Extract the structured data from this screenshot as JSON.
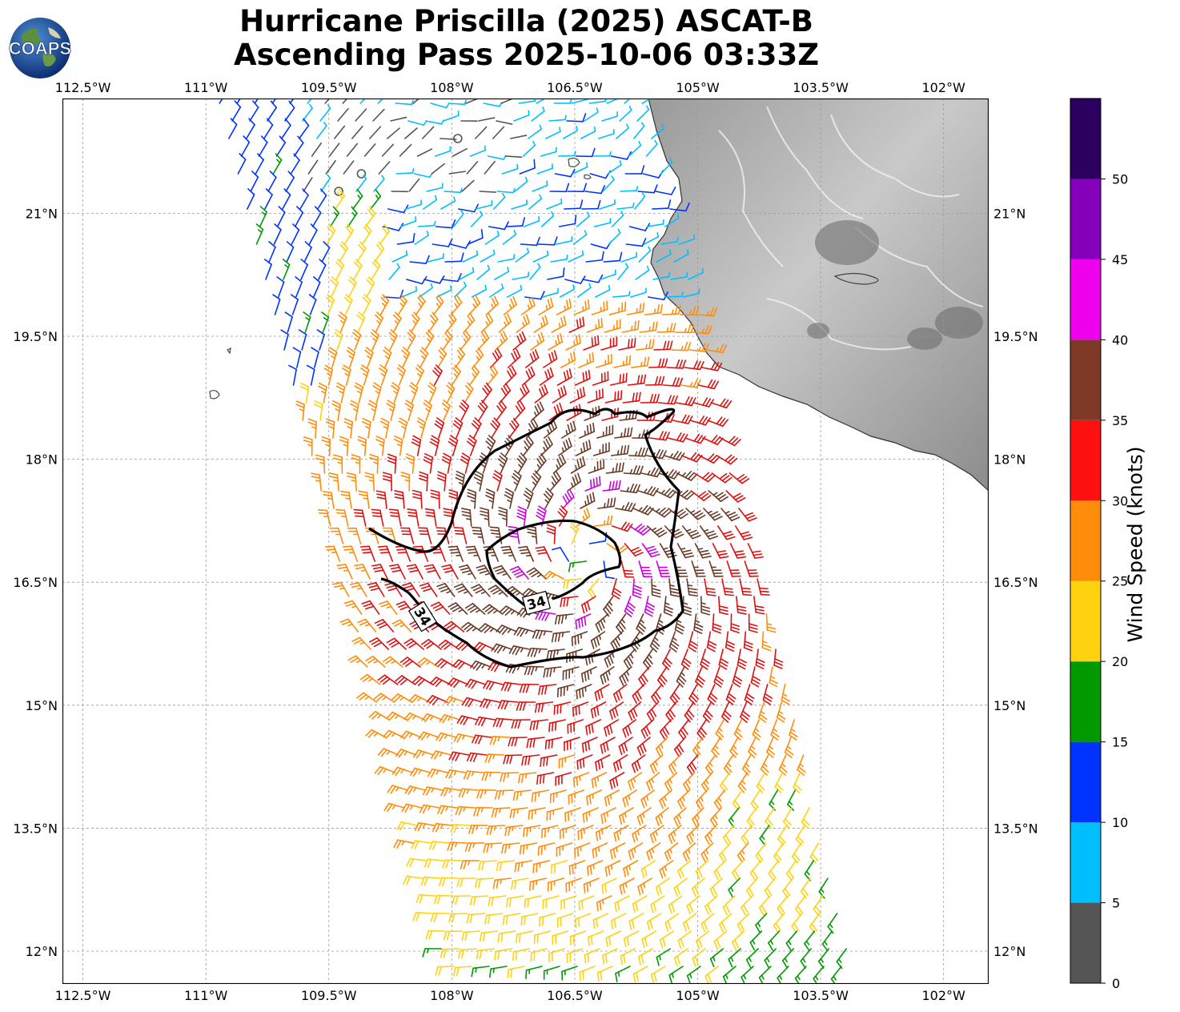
{
  "header": {
    "title_line1": "Hurricane Priscilla (2025) ASCAT-B",
    "title_line2": "Ascending Pass 2025-10-06 03:33Z",
    "logo_text": "COAPS"
  },
  "map": {
    "lon_range": [
      -112.75,
      -101.45
    ],
    "lat_range": [
      11.6,
      22.4
    ],
    "lon_ticks": [
      {
        "value": -112.5,
        "label": "112.5°W"
      },
      {
        "value": -111.0,
        "label": "111°W"
      },
      {
        "value": -109.5,
        "label": "109.5°W"
      },
      {
        "value": -108.0,
        "label": "108°W"
      },
      {
        "value": -106.5,
        "label": "106.5°W"
      },
      {
        "value": -105.0,
        "label": "105°W"
      },
      {
        "value": -103.5,
        "label": "103.5°W"
      },
      {
        "value": -102.0,
        "label": "102°W"
      }
    ],
    "lat_ticks": [
      {
        "value": 12.0,
        "label": "12°N"
      },
      {
        "value": 13.5,
        "label": "13.5°N"
      },
      {
        "value": 15.0,
        "label": "15°N"
      },
      {
        "value": 16.5,
        "label": "16.5°N"
      },
      {
        "value": 18.0,
        "label": "18°N"
      },
      {
        "value": 19.5,
        "label": "19.5°N"
      },
      {
        "value": 21.0,
        "label": "21°N"
      }
    ],
    "grid": true,
    "storm_center": {
      "lon": -106.35,
      "lat": 16.8
    },
    "contour_label": "34",
    "wind_field": "cyclonic vortex, ASCAT swath"
  },
  "colorbar": {
    "label": "Wind Speed (knots)",
    "bins": [
      {
        "min": 0,
        "max": 5,
        "color": "#555555"
      },
      {
        "min": 5,
        "max": 10,
        "color": "#00bfff"
      },
      {
        "min": 10,
        "max": 15,
        "color": "#0033ff"
      },
      {
        "min": 15,
        "max": 20,
        "color": "#009900"
      },
      {
        "min": 20,
        "max": 25,
        "color": "#ffd20f"
      },
      {
        "min": 25,
        "max": 30,
        "color": "#ff8c0a"
      },
      {
        "min": 30,
        "max": 35,
        "color": "#ff1010"
      },
      {
        "min": 35,
        "max": 40,
        "color": "#7f3a27"
      },
      {
        "min": 40,
        "max": 45,
        "color": "#ee00ee"
      },
      {
        "min": 45,
        "max": 50,
        "color": "#8400bb"
      },
      {
        "min": 50,
        "max": 55,
        "color": "#2c005e"
      }
    ],
    "tick_labels": [
      "0",
      "5",
      "10",
      "15",
      "20",
      "25",
      "30",
      "35",
      "40",
      "45",
      "50"
    ],
    "barb_colors": {
      "calm": "#555555",
      "c5": "#00bfff",
      "c10": "#0033ff",
      "c15": "#009900",
      "c20": "#ffd20f",
      "c25": "#ff8c0a",
      "c30": "#dd1010",
      "c35": "#6b3a27",
      "c40": "#cc00dd"
    }
  }
}
